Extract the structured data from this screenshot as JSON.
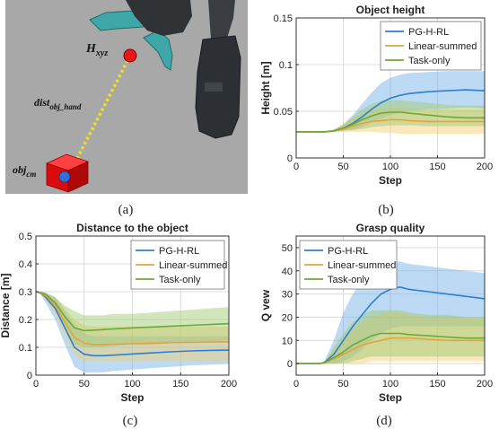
{
  "captions": [
    "(a)",
    "(b)",
    "(c)",
    "(d)"
  ],
  "scene": {
    "target_label": "H",
    "target_sub": "xyz",
    "dist_label": "dist",
    "dist_sub": "obj_hand",
    "obj_label": "obj",
    "obj_sub": "cm",
    "colors": {
      "background": "#a8a8a8",
      "target": "#e81818",
      "cube": "#e01010",
      "com": "#2f6fe0",
      "line": "#f0e020"
    }
  },
  "series_styles": [
    {
      "name": "PG-H-RL",
      "color": "#2e7fcf",
      "band": "#6aaee6"
    },
    {
      "name": "Linear-summed",
      "color": "#e8a23a",
      "band": "#f1cd6a"
    },
    {
      "name": "Task-only",
      "color": "#6aaa3a",
      "band": "#9cc86a"
    }
  ],
  "chart_data": [
    {
      "type": "line",
      "panel": "b",
      "title": "Object height",
      "xlabel": "Step",
      "ylabel": "Height [m]",
      "xlim": [
        0,
        200
      ],
      "ylim": [
        0,
        0.15
      ],
      "xticks": [
        0,
        50,
        100,
        150,
        200
      ],
      "yticks": [
        0,
        0.05,
        0.1,
        0.15
      ],
      "ytick_labels": [
        "0",
        "0.05",
        "0.1",
        "0.15"
      ],
      "grid": true,
      "legend": "top-right",
      "series": [
        {
          "name": "PG-H-RL",
          "x": [
            0,
            30,
            40,
            50,
            60,
            70,
            80,
            90,
            100,
            110,
            120,
            140,
            160,
            180,
            200
          ],
          "mean": [
            0.028,
            0.028,
            0.029,
            0.032,
            0.037,
            0.044,
            0.052,
            0.059,
            0.064,
            0.067,
            0.069,
            0.071,
            0.072,
            0.073,
            0.072
          ],
          "lower": [
            0.028,
            0.028,
            0.028,
            0.029,
            0.03,
            0.033,
            0.038,
            0.042,
            0.046,
            0.048,
            0.05,
            0.052,
            0.053,
            0.054,
            0.053
          ],
          "upper": [
            0.028,
            0.028,
            0.03,
            0.036,
            0.046,
            0.058,
            0.07,
            0.08,
            0.086,
            0.089,
            0.091,
            0.092,
            0.093,
            0.093,
            0.093
          ]
        },
        {
          "name": "Linear-summed",
          "x": [
            0,
            30,
            40,
            50,
            60,
            70,
            80,
            90,
            100,
            110,
            120,
            140,
            160,
            180,
            200
          ],
          "mean": [
            0.028,
            0.028,
            0.029,
            0.031,
            0.034,
            0.037,
            0.039,
            0.04,
            0.041,
            0.041,
            0.04,
            0.039,
            0.039,
            0.039,
            0.039
          ],
          "lower": [
            0.028,
            0.028,
            0.028,
            0.028,
            0.028,
            0.028,
            0.028,
            0.027,
            0.027,
            0.026,
            0.026,
            0.026,
            0.026,
            0.026,
            0.026
          ],
          "upper": [
            0.028,
            0.028,
            0.031,
            0.036,
            0.042,
            0.047,
            0.051,
            0.053,
            0.054,
            0.054,
            0.053,
            0.052,
            0.052,
            0.052,
            0.052
          ]
        },
        {
          "name": "Task-only",
          "x": [
            0,
            30,
            40,
            50,
            60,
            70,
            80,
            90,
            100,
            110,
            120,
            140,
            160,
            180,
            200
          ],
          "mean": [
            0.028,
            0.028,
            0.029,
            0.032,
            0.036,
            0.041,
            0.045,
            0.048,
            0.049,
            0.049,
            0.048,
            0.046,
            0.044,
            0.043,
            0.043
          ],
          "lower": [
            0.028,
            0.028,
            0.028,
            0.029,
            0.03,
            0.031,
            0.033,
            0.034,
            0.035,
            0.035,
            0.035,
            0.034,
            0.034,
            0.034,
            0.034
          ],
          "upper": [
            0.028,
            0.028,
            0.03,
            0.036,
            0.044,
            0.052,
            0.058,
            0.061,
            0.062,
            0.062,
            0.061,
            0.059,
            0.057,
            0.056,
            0.056
          ]
        }
      ]
    },
    {
      "type": "line",
      "panel": "c",
      "title": "Distance to the object",
      "xlabel": "Step",
      "ylabel": "Distance [m]",
      "xlim": [
        0,
        200
      ],
      "ylim": [
        0,
        0.5
      ],
      "xticks": [
        0,
        50,
        100,
        150,
        200
      ],
      "yticks": [
        0,
        0.1,
        0.2,
        0.3,
        0.4,
        0.5
      ],
      "ytick_labels": [
        "0",
        "0.1",
        "0.2",
        "0.3",
        "0.4",
        "0.5"
      ],
      "grid": true,
      "legend": "top-right",
      "series": [
        {
          "name": "PG-H-RL",
          "x": [
            0,
            5,
            10,
            20,
            30,
            40,
            50,
            60,
            70,
            80,
            100,
            120,
            140,
            160,
            180,
            200
          ],
          "mean": [
            0.3,
            0.295,
            0.28,
            0.24,
            0.17,
            0.1,
            0.075,
            0.07,
            0.07,
            0.072,
            0.076,
            0.08,
            0.084,
            0.087,
            0.089,
            0.09
          ],
          "lower": [
            0.3,
            0.29,
            0.26,
            0.2,
            0.11,
            0.03,
            0.01,
            0.01,
            0.01,
            0.015,
            0.02,
            0.025,
            0.03,
            0.035,
            0.038,
            0.04
          ],
          "upper": [
            0.3,
            0.3,
            0.295,
            0.28,
            0.23,
            0.18,
            0.15,
            0.14,
            0.14,
            0.14,
            0.14,
            0.14,
            0.14,
            0.14,
            0.14,
            0.14
          ]
        },
        {
          "name": "Linear-summed",
          "x": [
            0,
            5,
            10,
            20,
            30,
            40,
            50,
            60,
            70,
            80,
            100,
            120,
            140,
            160,
            180,
            200
          ],
          "mean": [
            0.3,
            0.295,
            0.285,
            0.25,
            0.19,
            0.135,
            0.115,
            0.11,
            0.11,
            0.111,
            0.113,
            0.115,
            0.117,
            0.118,
            0.119,
            0.12
          ],
          "lower": [
            0.3,
            0.29,
            0.27,
            0.22,
            0.14,
            0.07,
            0.05,
            0.05,
            0.05,
            0.05,
            0.05,
            0.05,
            0.05,
            0.05,
            0.05,
            0.05
          ],
          "upper": [
            0.3,
            0.3,
            0.295,
            0.28,
            0.24,
            0.2,
            0.18,
            0.175,
            0.175,
            0.175,
            0.175,
            0.175,
            0.175,
            0.175,
            0.175,
            0.175
          ]
        },
        {
          "name": "Task-only",
          "x": [
            0,
            5,
            10,
            20,
            30,
            40,
            50,
            60,
            70,
            80,
            100,
            120,
            140,
            160,
            180,
            200
          ],
          "mean": [
            0.3,
            0.297,
            0.29,
            0.26,
            0.21,
            0.17,
            0.16,
            0.162,
            0.164,
            0.166,
            0.17,
            0.173,
            0.176,
            0.179,
            0.182,
            0.185
          ],
          "lower": [
            0.3,
            0.29,
            0.28,
            0.24,
            0.17,
            0.11,
            0.1,
            0.1,
            0.1,
            0.105,
            0.11,
            0.11,
            0.115,
            0.12,
            0.12,
            0.125
          ],
          "upper": [
            0.3,
            0.3,
            0.298,
            0.28,
            0.25,
            0.23,
            0.215,
            0.215,
            0.215,
            0.22,
            0.22,
            0.225,
            0.23,
            0.235,
            0.24,
            0.245
          ]
        }
      ]
    },
    {
      "type": "line",
      "panel": "d",
      "title": "Grasp quality",
      "xlabel": "Step",
      "ylabel": "Q vew",
      "xlim": [
        0,
        200
      ],
      "ylim": [
        -5,
        55
      ],
      "xticks": [
        0,
        50,
        100,
        150,
        200
      ],
      "yticks": [
        0,
        10,
        20,
        30,
        40,
        50
      ],
      "ytick_labels": [
        "0",
        "10",
        "20",
        "30",
        "40",
        "50"
      ],
      "grid": true,
      "legend": "top-left",
      "series": [
        {
          "name": "PG-H-RL",
          "x": [
            0,
            25,
            30,
            40,
            50,
            60,
            70,
            80,
            90,
            100,
            110,
            120,
            140,
            160,
            180,
            200
          ],
          "mean": [
            0,
            0,
            0.5,
            4,
            10,
            16,
            21,
            26,
            30,
            32,
            33,
            32,
            31,
            30,
            29,
            28
          ],
          "lower": [
            0,
            0,
            0,
            0,
            1,
            3,
            6,
            10,
            13,
            15,
            16,
            16,
            16,
            16,
            16,
            16
          ],
          "upper": [
            0,
            0,
            1,
            10,
            22,
            30,
            36,
            40,
            43,
            44,
            44,
            43,
            42,
            41,
            40,
            39
          ]
        },
        {
          "name": "Linear-summed",
          "x": [
            0,
            25,
            30,
            40,
            50,
            60,
            70,
            80,
            90,
            100,
            110,
            120,
            140,
            160,
            180,
            200
          ],
          "mean": [
            0,
            0,
            0.3,
            2,
            4,
            6,
            8,
            9,
            10,
            11,
            11,
            11,
            10.5,
            10,
            10,
            10
          ],
          "lower": [
            0,
            0,
            0,
            0,
            0,
            0,
            0,
            1,
            1,
            1,
            1,
            1,
            1,
            1,
            1,
            1
          ],
          "upper": [
            0,
            0,
            1,
            6,
            11,
            15,
            18,
            20,
            21,
            22,
            22,
            21,
            20,
            20,
            20,
            20
          ]
        },
        {
          "name": "Task-only",
          "x": [
            0,
            25,
            30,
            40,
            50,
            60,
            70,
            80,
            90,
            100,
            110,
            120,
            140,
            160,
            180,
            200
          ],
          "mean": [
            0,
            0,
            0.4,
            2.5,
            5,
            8,
            10,
            12,
            13,
            13,
            13,
            12.5,
            12,
            11.5,
            11,
            11
          ],
          "lower": [
            0,
            0,
            0,
            0,
            0,
            1,
            2,
            3,
            3,
            3,
            3,
            3,
            3,
            3,
            3,
            3
          ],
          "upper": [
            0,
            0,
            1,
            7,
            13,
            18,
            21,
            23,
            23,
            23,
            23,
            22,
            21,
            21,
            20,
            20
          ]
        }
      ]
    }
  ]
}
